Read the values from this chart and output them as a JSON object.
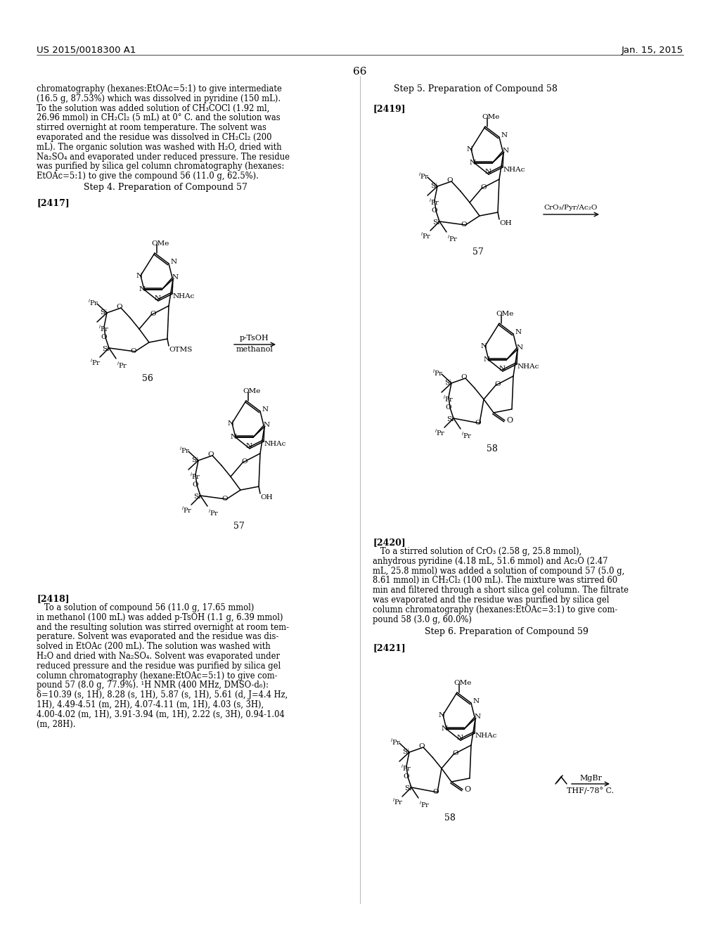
{
  "bg": "#ffffff",
  "header_left": "US 2015/0018300 A1",
  "header_right": "Jan. 15, 2015",
  "page_num": "66"
}
